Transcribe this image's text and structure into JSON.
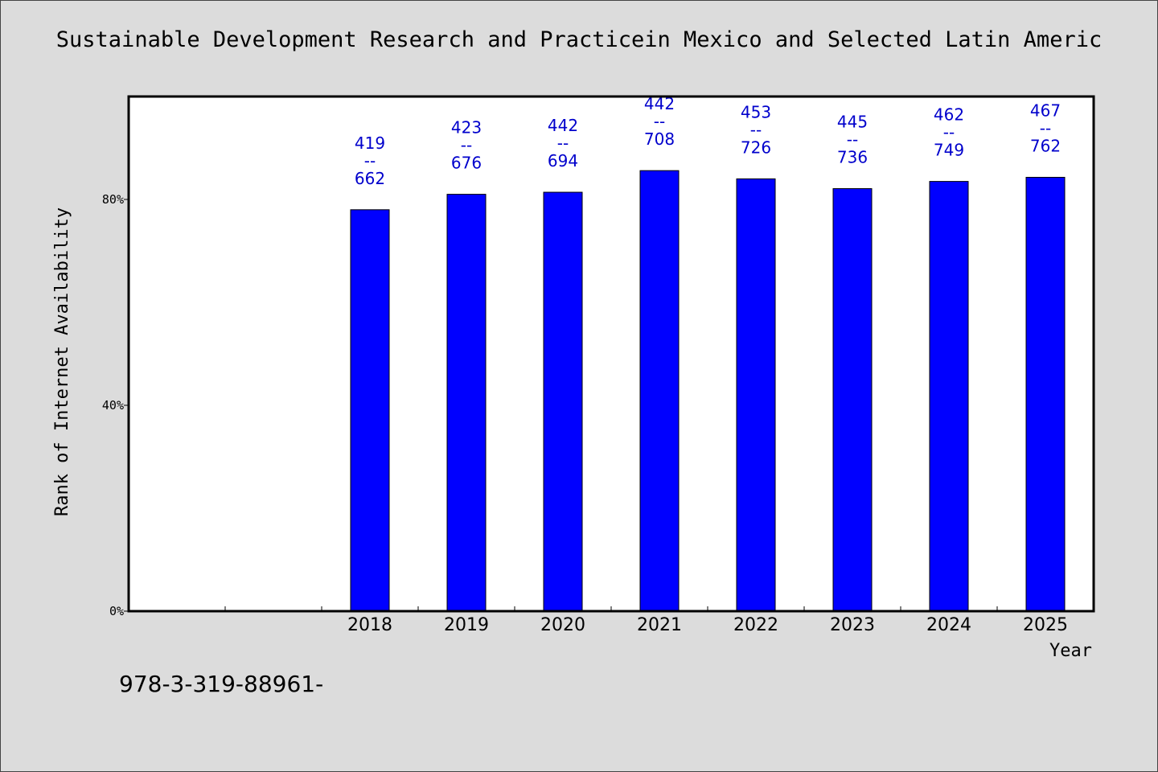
{
  "header": {
    "title": "Sustainable Development Research and Practicein Mexico and Selected Latin Americ"
  },
  "footer": {
    "code": "978-3-319-88961-"
  },
  "chart_data": {
    "type": "bar",
    "title": "Sustainable Development Research and Practicein Mexico and Selected Latin Americ",
    "xlabel": "Year",
    "ylabel": "Rank of Internet Availability",
    "categories": [
      "",
      "",
      "2018",
      "2019",
      "2020",
      "2021",
      "2022",
      "2023",
      "2024",
      "2025"
    ],
    "values": [
      null,
      null,
      78.0,
      81.0,
      81.4,
      85.6,
      84.0,
      82.1,
      83.5,
      84.3
    ],
    "data_labels": [
      null,
      null,
      [
        "419",
        "--",
        "662"
      ],
      [
        "423",
        "--",
        "676"
      ],
      [
        "442",
        "--",
        "694"
      ],
      [
        "442",
        "--",
        "708"
      ],
      [
        "453",
        "--",
        "726"
      ],
      [
        "445",
        "--",
        "736"
      ],
      [
        "462",
        "--",
        "749"
      ],
      [
        "467",
        "--",
        "762"
      ]
    ],
    "ylim": [
      0,
      100
    ],
    "yticks": [
      0,
      40,
      80
    ],
    "ytick_labels": [
      "0%",
      "40%",
      "80%"
    ],
    "grid": false,
    "colors": {
      "bar": "#0000ff",
      "data_label": "#0000cc",
      "plot_bg": "#ffffff",
      "page_bg": "#dcdcdc"
    }
  }
}
